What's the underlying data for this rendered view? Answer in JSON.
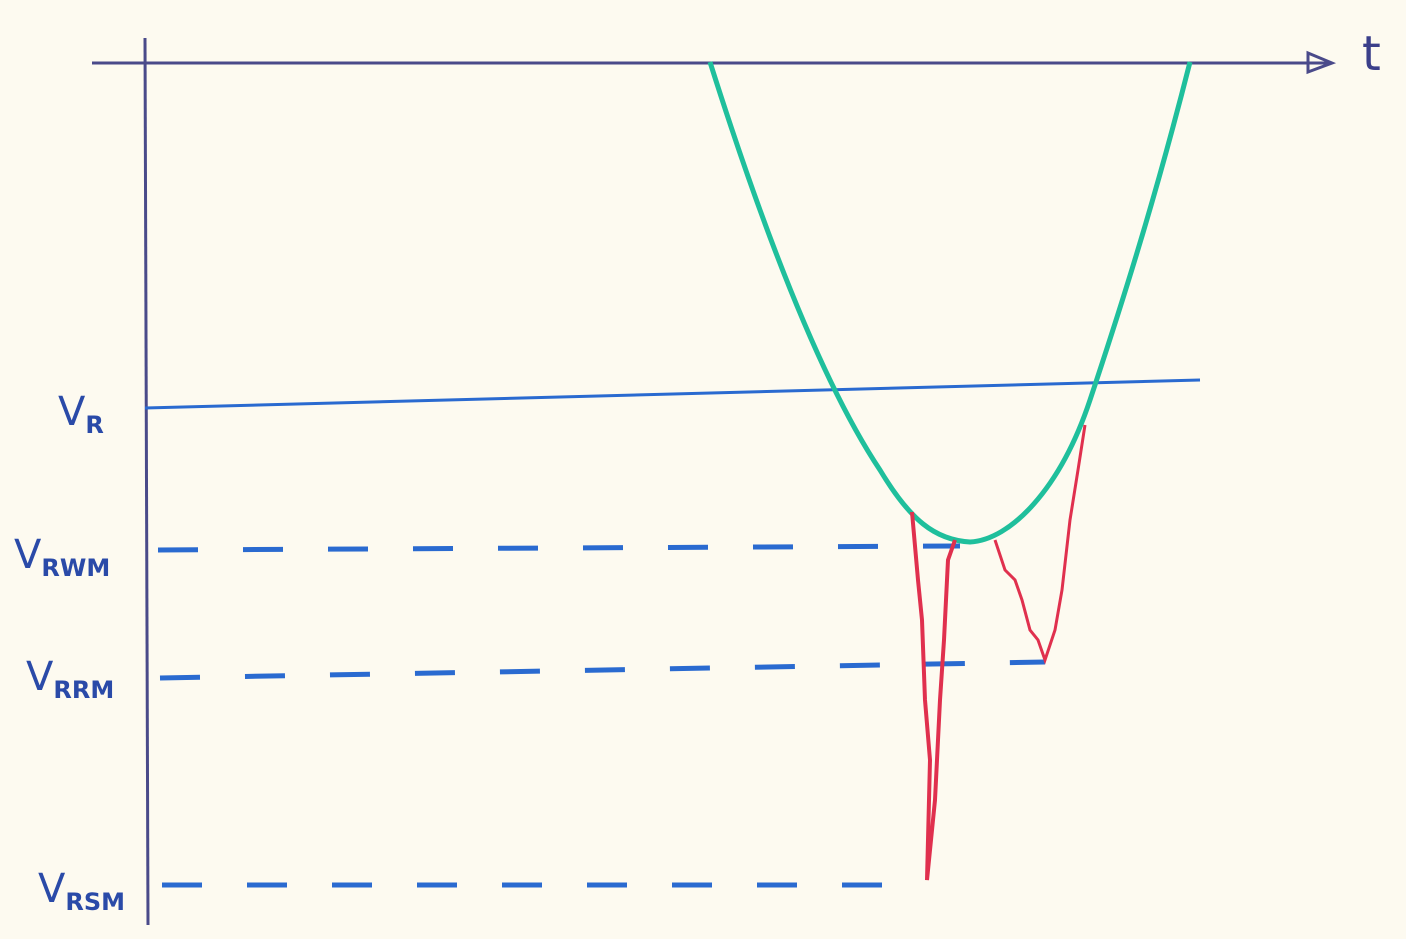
{
  "axis": {
    "time_label": "t"
  },
  "levels": [
    {
      "symbol": "V",
      "subscript": "R"
    },
    {
      "symbol": "V",
      "subscript": "RWM"
    },
    {
      "symbol": "V",
      "subscript": "RRM"
    },
    {
      "symbol": "V",
      "subscript": "RSM"
    }
  ]
}
